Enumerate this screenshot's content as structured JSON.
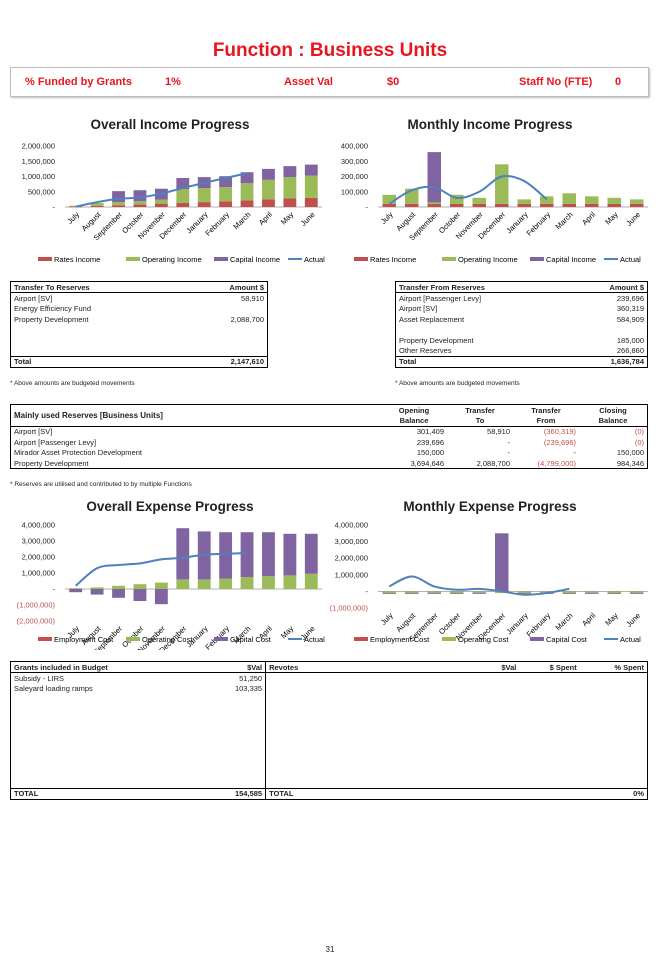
{
  "title": "Function : Business Units",
  "kpis": {
    "grants_label": "% Funded by Grants",
    "grants_value": "1%",
    "asset_label": "Asset Val",
    "asset_value": "$0",
    "staff_label": "Staff No (FTE)",
    "staff_value": "0"
  },
  "months": [
    "July",
    "August",
    "September",
    "October",
    "November",
    "December",
    "January",
    "February",
    "March",
    "April",
    "May",
    "June"
  ],
  "colors": {
    "red": "#c0504d",
    "green": "#9bbb59",
    "purple": "#8064a2",
    "blue": "#4f81bd"
  },
  "charts": {
    "overall_income": {
      "title": "Overall Income Progress",
      "yticks": [
        "2,000,000",
        "1,500,000",
        "1,000,000",
        "500,000",
        "-"
      ],
      "legend": [
        "Rates Income",
        "Operating Income",
        "Capital Income",
        "Actual"
      ]
    },
    "monthly_income": {
      "title": "Monthly Income Progress",
      "yticks": [
        "400,000",
        "300,000",
        "200,000",
        "100,000",
        "-"
      ],
      "legend": [
        "Rates Income",
        "Operating Income",
        "Capital Income",
        "Actual"
      ]
    },
    "overall_expense": {
      "title": "Overall Expense Progress",
      "yticks": [
        "4,000,000",
        "3,000,000",
        "2,000,000",
        "1,000,000",
        "-",
        "(1,000,000)",
        "(2,000,000)"
      ],
      "legend": [
        "Employment Cost",
        "Operating Cost",
        "Capital Cost",
        "Actual"
      ]
    },
    "monthly_expense": {
      "title": "Monthly Expense Progress",
      "yticks": [
        "4,000,000",
        "3,000,000",
        "2,000,000",
        "1,000,000",
        "-",
        "(1,000,000)"
      ],
      "legend": [
        "Employment Cost",
        "Operating Cost",
        "Capital Cost",
        "Actual"
      ]
    }
  },
  "chart_data": [
    {
      "type": "bar",
      "title": "Overall Income Progress",
      "categories": [
        "July",
        "August",
        "September",
        "October",
        "November",
        "December",
        "January",
        "February",
        "March",
        "April",
        "May",
        "June"
      ],
      "ylim": [
        0,
        2000000
      ],
      "series": [
        {
          "name": "Rates Income",
          "values": [
            20000,
            40000,
            60000,
            80000,
            110000,
            130000,
            160000,
            190000,
            220000,
            250000,
            280000,
            300000
          ]
        },
        {
          "name": "Operating Income",
          "values": [
            20000,
            90000,
            100000,
            110000,
            130000,
            460000,
            460000,
            460000,
            560000,
            640000,
            700000,
            730000
          ]
        },
        {
          "name": "Capital Income",
          "values": [
            0,
            0,
            360000,
            360000,
            360000,
            360000,
            360000,
            360000,
            360000,
            360000,
            360000,
            360000
          ]
        },
        {
          "name": "Actual",
          "values": [
            10000,
            160000,
            270000,
            310000,
            440000,
            620000,
            790000,
            950000,
            1110000,
            null,
            null,
            null
          ]
        }
      ]
    },
    {
      "type": "bar",
      "title": "Monthly Income Progress",
      "categories": [
        "July",
        "August",
        "September",
        "October",
        "November",
        "December",
        "January",
        "February",
        "March",
        "April",
        "May",
        "June"
      ],
      "ylim": [
        0,
        400000
      ],
      "series": [
        {
          "name": "Rates Income",
          "values": [
            20000,
            20000,
            20000,
            20000,
            20000,
            20000,
            20000,
            20000,
            20000,
            20000,
            20000,
            20000
          ]
        },
        {
          "name": "Operating Income",
          "values": [
            60000,
            100000,
            10000,
            60000,
            40000,
            260000,
            30000,
            50000,
            70000,
            50000,
            40000,
            30000
          ]
        },
        {
          "name": "Capital Income",
          "values": [
            0,
            0,
            330000,
            0,
            0,
            0,
            0,
            0,
            0,
            0,
            0,
            0
          ]
        },
        {
          "name": "Actual",
          "values": [
            20000,
            110000,
            130000,
            60000,
            100000,
            200000,
            170000,
            50000,
            null,
            null,
            null,
            null
          ]
        }
      ]
    },
    {
      "type": "bar",
      "title": "Overall Expense Progress",
      "categories": [
        "July",
        "August",
        "September",
        "October",
        "November",
        "December",
        "January",
        "February",
        "March",
        "April",
        "May",
        "June"
      ],
      "ylim": [
        -2000000,
        4000000
      ],
      "series": [
        {
          "name": "Employment Cost",
          "values": [
            0,
            0,
            0,
            0,
            0,
            0,
            0,
            0,
            0,
            0,
            0,
            0
          ]
        },
        {
          "name": "Operating Cost",
          "values": [
            50000,
            100000,
            200000,
            300000,
            400000,
            600000,
            600000,
            650000,
            750000,
            800000,
            850000,
            950000
          ]
        },
        {
          "name": "Capital Cost",
          "values": [
            -200000,
            -350000,
            -550000,
            -750000,
            -950000,
            3200000,
            3000000,
            2900000,
            2800000,
            2750000,
            2600000,
            2500000
          ]
        },
        {
          "name": "Actual",
          "values": [
            200000,
            1300000,
            1500000,
            1600000,
            1850000,
            1950000,
            2150000,
            2200000,
            2250000,
            null,
            null,
            null
          ]
        }
      ]
    },
    {
      "type": "bar",
      "title": "Monthly Expense Progress",
      "categories": [
        "July",
        "August",
        "September",
        "October",
        "November",
        "December",
        "January",
        "February",
        "March",
        "April",
        "May",
        "June"
      ],
      "ylim": [
        -1000000,
        4000000
      ],
      "series": [
        {
          "name": "Employment Cost",
          "values": [
            0,
            0,
            0,
            0,
            0,
            0,
            0,
            0,
            0,
            0,
            0,
            0
          ]
        },
        {
          "name": "Operating Cost",
          "values": [
            -100000,
            -100000,
            -100000,
            -100000,
            -100000,
            -100000,
            -100000,
            -100000,
            -100000,
            -100000,
            -100000,
            -100000
          ]
        },
        {
          "name": "Capital Cost",
          "values": [
            -50000,
            -50000,
            -50000,
            -50000,
            -50000,
            3500000,
            -50000,
            -50000,
            -50000,
            -50000,
            -50000,
            -50000
          ]
        },
        {
          "name": "Actual",
          "values": [
            300000,
            900000,
            300000,
            100000,
            150000,
            0,
            -200000,
            -100000,
            150000,
            null,
            null,
            null
          ]
        }
      ]
    }
  ],
  "to_reserves": {
    "h1": "Transfer To Reserves",
    "h2": "Amount $",
    "rows": [
      [
        "Airport [SV]",
        "58,910"
      ],
      [
        "Energy Efficiency Fund",
        ""
      ],
      [
        "Property Development",
        "2,088,700"
      ],
      [
        "",
        ""
      ],
      [
        "",
        ""
      ],
      [
        "",
        ""
      ]
    ],
    "total_label": "Total",
    "total": "2,147,610",
    "note": "* Above amounts are budgeted movements"
  },
  "from_reserves": {
    "h1": "Transfer From Reserves",
    "h2": "Amount $",
    "rows": [
      [
        "Airport [Passenger Levy]",
        "239,696"
      ],
      [
        "Airport [SV]",
        "360,319"
      ],
      [
        "Asset Replacement",
        "584,909"
      ],
      [
        "",
        ""
      ],
      [
        "Property Development",
        "185,000"
      ],
      [
        "Other Reserves",
        "266,860"
      ]
    ],
    "total_label": "Total",
    "total": "1,636,784",
    "note": "* Above amounts are budgeted movements"
  },
  "reserves": {
    "h": "Mainly used Reserves [Business Units]",
    "c1a": "Opening",
    "c1b": "Balance",
    "c2a": "Transfer",
    "c2b": "To",
    "c3a": "Transfer",
    "c3b": "From",
    "c4a": "Closing",
    "c4b": "Balance",
    "rows": [
      [
        "Airport [SV]",
        "301,409",
        "58,910",
        "(360,319)",
        "(0)"
      ],
      [
        "Airport [Passenger Levy]",
        "239,696",
        "-",
        "(239,696)",
        "(0)"
      ],
      [
        "Mirador Asset Protection Development",
        "150,000",
        "-",
        "-",
        "150,000"
      ],
      [
        "Property Development",
        "3,694,646",
        "2,088,700",
        "(4,799,000)",
        "984,346"
      ]
    ],
    "note": "* Reserves are utilised and contributed to by multiple Functions"
  },
  "grants": {
    "h1": "Grants included in Budget",
    "h2": "$Val",
    "h3": "Revotes",
    "h4": "$Val",
    "h5": "$ Spent",
    "h6": "% Spent",
    "rows": [
      [
        "Subsidy - LIRS",
        "51,250"
      ],
      [
        "Saleyard loading ramps",
        "103,335"
      ]
    ],
    "total_label": "TOTAL",
    "total": "154,585",
    "total2_label": "TOTAL",
    "pct": "0%"
  },
  "page_number": "31"
}
